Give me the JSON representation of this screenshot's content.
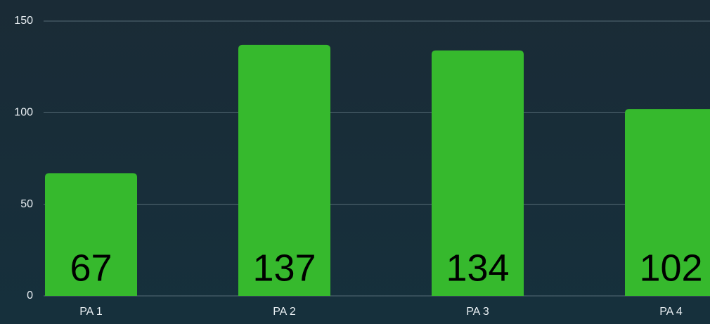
{
  "chart_data": {
    "type": "bar",
    "categories": [
      "PA 1",
      "PA 2",
      "PA 3",
      "PA 4"
    ],
    "values": [
      67,
      137,
      134,
      102
    ],
    "color": "#36b92d",
    "ylim": [
      0,
      150
    ],
    "yticks": [
      0,
      50,
      100,
      150
    ],
    "grid": true
  }
}
